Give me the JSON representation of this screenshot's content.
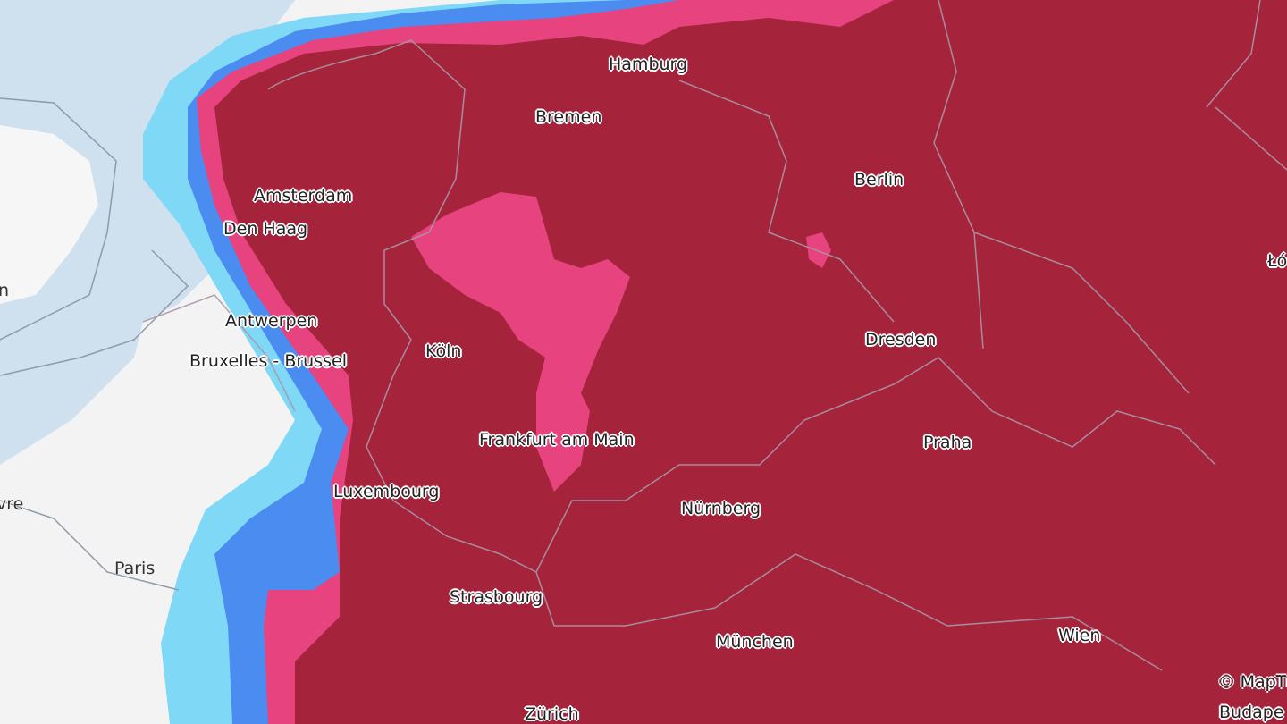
{
  "map": {
    "colors": {
      "land": "#f3f3f3",
      "sea": "#cfe0ef",
      "layer_light_blue": "#7fd8f5",
      "layer_blue": "#4a8cf0",
      "layer_pink": "#e6437f",
      "layer_dark_red": "#a6233c",
      "borders": "#9a8f9f"
    },
    "labels": {
      "hamburg": "Hamburg",
      "bremen": "Bremen",
      "berlin": "Berlin",
      "amsterdam": "Amsterdam",
      "den_haag": "Den Haag",
      "antwerpen": "Antwerpen",
      "bruxelles": "Bruxelles - Brussel",
      "koeln": "Köln",
      "dresden": "Dresden",
      "frankfurt": "Frankfurt am Main",
      "praha": "Praha",
      "luxembourg": "Luxembourg",
      "nuernberg": "Nürnberg",
      "paris": "Paris",
      "strasbourg": "Strasbourg",
      "muenchen": "München",
      "wien": "Wien",
      "zuerich": "Zürich",
      "lodz_partial": "Łó",
      "london_partial": "n",
      "le_havre_partial": "vre",
      "budapest_partial": "Budape"
    },
    "attribution": "© MapTi"
  }
}
